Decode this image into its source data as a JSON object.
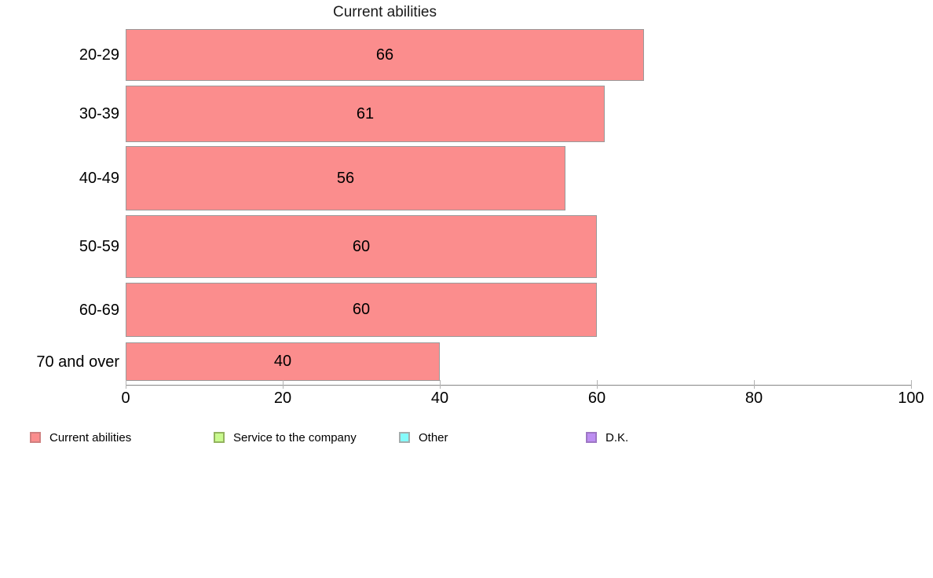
{
  "title": "Current abilities",
  "chart_data": {
    "type": "bar",
    "orientation": "horizontal",
    "title": "Current abilities",
    "categories": [
      "20-29",
      "30-39",
      "40-49",
      "50-59",
      "60-69",
      "70 and over"
    ],
    "values": [
      66,
      61,
      56,
      60,
      60,
      40
    ],
    "value_labels": [
      "66",
      "61",
      "56",
      "60",
      "60",
      "40"
    ],
    "xlabel": "",
    "ylabel": "",
    "xlim": [
      0,
      100
    ],
    "xticks": [
      0,
      20,
      40,
      60,
      80,
      100
    ],
    "grid": false,
    "bar_color": "#fb8d8d",
    "bar_border_color": "#9a9a9a",
    "axis_color": "#878787",
    "legend_position": "bottom",
    "legend": [
      {
        "label": "Current abilities",
        "fill": "#fb8d8d",
        "border": "#d08080"
      },
      {
        "label": "Service to the company",
        "fill": "#c9fa8e",
        "border": "#93b35f"
      },
      {
        "label": "Other",
        "fill": "#85fbfb",
        "border": "#a3adad"
      },
      {
        "label": "D.K.",
        "fill": "#bd8ef2",
        "border": "#9e77c4"
      }
    ]
  }
}
